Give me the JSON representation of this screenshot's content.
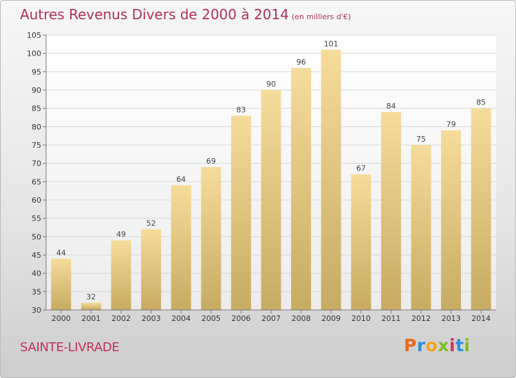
{
  "chart_data": {
    "type": "bar",
    "title": "Autres Revenus Divers de 2000 à 2014",
    "subtitle": "(en milliers d'€)",
    "categories": [
      "2000",
      "2001",
      "2002",
      "2003",
      "2004",
      "2005",
      "2006",
      "2007",
      "2008",
      "2009",
      "2010",
      "2011",
      "2012",
      "2013",
      "2014"
    ],
    "values": [
      44,
      32,
      49,
      52,
      64,
      69,
      83,
      90,
      96,
      101,
      67,
      84,
      75,
      79,
      85
    ],
    "ylim": [
      30,
      105
    ],
    "yticks": [
      30,
      35,
      40,
      45,
      50,
      55,
      60,
      65,
      70,
      75,
      80,
      85,
      90,
      95,
      100,
      105
    ],
    "grid": true,
    "bar_color_top": "#f6dc9a",
    "bar_color_bottom": "#c7ab62"
  },
  "footer": {
    "place": "SAINTE-LIVRADE"
  },
  "logo": {
    "text": "Proxiti",
    "letter_colors": [
      "#e86a1a",
      "#2f8fd8",
      "#f5a21a",
      "#7cbf2a",
      "#d6305b",
      "#2f8fd8",
      "#7cbf2a"
    ]
  }
}
